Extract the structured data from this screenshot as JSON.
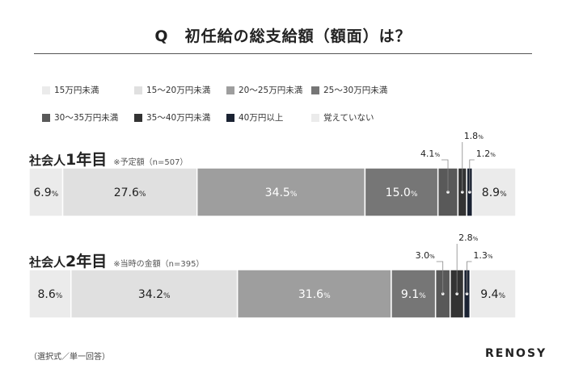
{
  "title": "Q　初任給の総支給額（額面）は？",
  "legend": [
    {
      "label": "15万円未満",
      "color": "#ebebeb"
    },
    {
      "label": "15〜20万円未満",
      "color": "#e0e0e0"
    },
    {
      "label": "20〜25万円未満",
      "color": "#9e9e9e"
    },
    {
      "label": "25〜30万円未満",
      "color": "#767676"
    },
    {
      "label": "30〜35万円未満",
      "color": "#595959"
    },
    {
      "label": "35〜40万円未満",
      "color": "#333333"
    },
    {
      "label": "40万円以上",
      "color": "#1b2333"
    },
    {
      "label": "覚えていない",
      "color": "#ebebeb"
    }
  ],
  "groups": [
    {
      "title_prefix": "社会人",
      "title_big": "1年目",
      "note": "※予定額（n=507）"
    },
    {
      "title_prefix": "社会人",
      "title_big": "2年目",
      "note": "※当時の金額（n=395）"
    }
  ],
  "chart_data": {
    "type": "bar",
    "orientation": "horizontal-stacked-100",
    "unit": "%",
    "categories": [
      "社会人1年目",
      "社会人2年目"
    ],
    "series": [
      {
        "name": "15万円未満",
        "values": [
          6.9,
          8.6
        ]
      },
      {
        "name": "15〜20万円未満",
        "values": [
          27.6,
          34.2
        ]
      },
      {
        "name": "20〜25万円未満",
        "values": [
          34.5,
          31.6
        ]
      },
      {
        "name": "25〜30万円未満",
        "values": [
          15.0,
          9.1
        ]
      },
      {
        "name": "30〜35万円未満",
        "values": [
          4.1,
          3.0
        ]
      },
      {
        "name": "35〜40万円未満",
        "values": [
          1.8,
          2.8
        ]
      },
      {
        "name": "40万円以上",
        "values": [
          1.2,
          1.3
        ]
      },
      {
        "name": "覚えていない",
        "values": [
          8.9,
          9.4
        ]
      }
    ]
  },
  "footnote": "（選択式／単一回答）",
  "logo": "RENOSY"
}
